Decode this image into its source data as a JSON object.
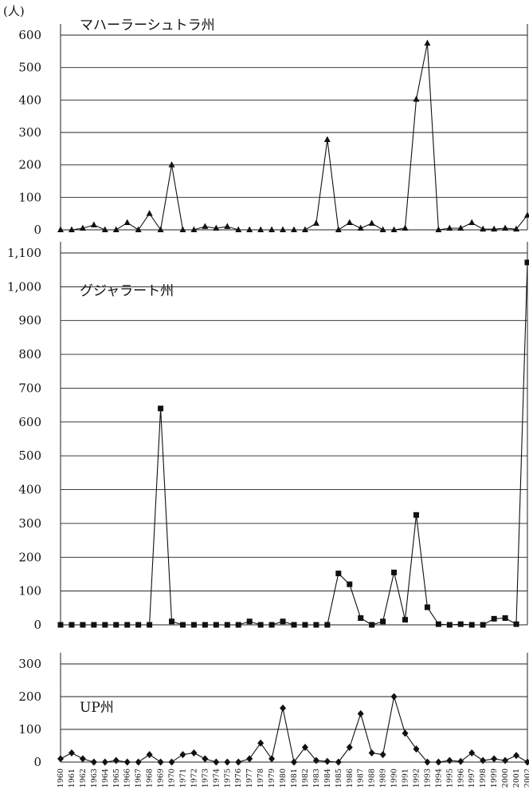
{
  "unit_label": "(人)",
  "chart_data": [
    {
      "type": "line",
      "title": "マハーラーシュトラ州",
      "marker": "triangle",
      "ylim": [
        0,
        600
      ],
      "yticks": [
        0,
        100,
        200,
        300,
        400,
        500,
        600
      ],
      "ytick_labels": [
        "0",
        "100",
        "200",
        "300",
        "400",
        "500",
        "600"
      ],
      "x": [
        1960,
        1961,
        1962,
        1963,
        1964,
        1965,
        1966,
        1967,
        1968,
        1969,
        1970,
        1971,
        1972,
        1973,
        1974,
        1975,
        1976,
        1977,
        1978,
        1979,
        1980,
        1981,
        1982,
        1983,
        1984,
        1985,
        1986,
        1987,
        1988,
        1989,
        1990,
        1991,
        1992,
        1993,
        1994,
        1995,
        1996,
        1997,
        1998,
        1999,
        2000,
        2001,
        2002
      ],
      "values": [
        0,
        0,
        5,
        15,
        0,
        0,
        22,
        0,
        50,
        0,
        200,
        0,
        0,
        10,
        5,
        10,
        0,
        0,
        0,
        0,
        0,
        0,
        0,
        20,
        278,
        0,
        22,
        5,
        20,
        0,
        0,
        5,
        402,
        575,
        0,
        5,
        5,
        22,
        2,
        2,
        5,
        2,
        45
      ]
    },
    {
      "type": "line",
      "title": "グジャラート州",
      "marker": "square",
      "ylim": [
        0,
        1100
      ],
      "yticks": [
        0,
        100,
        200,
        300,
        400,
        500,
        600,
        700,
        800,
        900,
        1000,
        1100
      ],
      "ytick_labels": [
        "0",
        "100",
        "200",
        "300",
        "400",
        "500",
        "600",
        "700",
        "800",
        "900",
        "1,000",
        "1,100"
      ],
      "x": [
        1960,
        1961,
        1962,
        1963,
        1964,
        1965,
        1966,
        1967,
        1968,
        1969,
        1970,
        1971,
        1972,
        1973,
        1974,
        1975,
        1976,
        1977,
        1978,
        1979,
        1980,
        1981,
        1982,
        1983,
        1984,
        1985,
        1986,
        1987,
        1988,
        1989,
        1990,
        1991,
        1992,
        1993,
        1994,
        1995,
        1996,
        1997,
        1998,
        1999,
        2000,
        2001,
        2002
      ],
      "values": [
        0,
        0,
        0,
        0,
        0,
        0,
        0,
        0,
        0,
        640,
        10,
        0,
        0,
        0,
        0,
        0,
        0,
        10,
        0,
        0,
        10,
        0,
        0,
        0,
        0,
        152,
        120,
        20,
        0,
        10,
        155,
        15,
        325,
        52,
        2,
        0,
        2,
        0,
        0,
        18,
        20,
        2,
        1072
      ]
    },
    {
      "type": "line",
      "title": "UP州",
      "marker": "diamond",
      "ylim": [
        0,
        300
      ],
      "yticks": [
        0,
        100,
        200,
        300
      ],
      "ytick_labels": [
        "0",
        "100",
        "200",
        "300"
      ],
      "x": [
        1960,
        1961,
        1962,
        1963,
        1964,
        1965,
        1966,
        1967,
        1968,
        1969,
        1970,
        1971,
        1972,
        1973,
        1974,
        1975,
        1976,
        1977,
        1978,
        1979,
        1980,
        1981,
        1982,
        1983,
        1984,
        1985,
        1986,
        1987,
        1988,
        1989,
        1990,
        1991,
        1992,
        1993,
        1994,
        1995,
        1996,
        1997,
        1998,
        1999,
        2000,
        2001,
        2002
      ],
      "x_tick_labels": [
        "1960",
        "1961",
        "1962",
        "1963",
        "1964",
        "1965",
        "1966",
        "1967",
        "1968",
        "1969",
        "1970",
        "1971",
        "1972",
        "1973",
        "1974",
        "1975",
        "1976",
        "1977",
        "1978",
        "1979",
        "1980",
        "1981",
        "1982",
        "1983",
        "1984",
        "1985",
        "1986",
        "1987",
        "1988",
        "1989",
        "1990",
        "1991",
        "1992",
        "1993",
        "1994",
        "1995",
        "1996",
        "1997",
        "1998",
        "1999",
        "2000",
        "2001",
        "2002"
      ],
      "values": [
        10,
        28,
        10,
        0,
        0,
        5,
        0,
        0,
        23,
        0,
        0,
        23,
        28,
        10,
        0,
        0,
        0,
        10,
        58,
        10,
        165,
        0,
        45,
        5,
        2,
        0,
        45,
        148,
        28,
        23,
        200,
        88,
        40,
        0,
        0,
        5,
        2,
        28,
        5,
        10,
        5,
        20,
        0
      ]
    }
  ]
}
